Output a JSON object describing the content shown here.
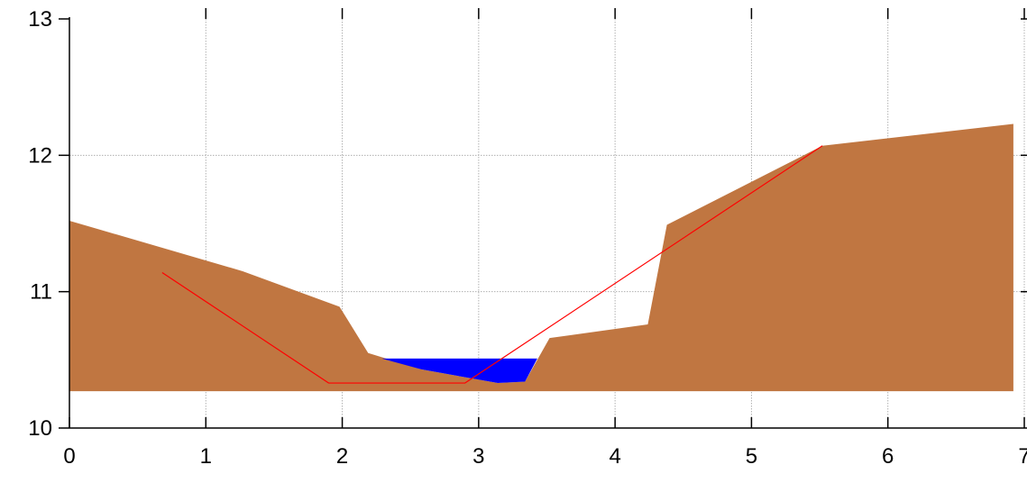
{
  "chart_data": {
    "type": "area",
    "title": "",
    "xlabel": "",
    "ylabel": "",
    "xlim": [
      0,
      7
    ],
    "ylim": [
      10,
      13
    ],
    "grid": true,
    "x_ticks": [
      0,
      1,
      2,
      3,
      4,
      5,
      6,
      7
    ],
    "y_ticks": [
      10,
      11,
      12,
      13
    ],
    "x_tick_labels": [
      "0",
      "1",
      "2",
      "3",
      "4",
      "5",
      "6",
      "7"
    ],
    "y_tick_labels": [
      "10",
      "11",
      "12",
      "13"
    ],
    "colors": {
      "terrain": "#c07641",
      "water": "#0000ff",
      "line": "#ff0000",
      "grid": "#b0b0b0",
      "axis": "#000000"
    },
    "base_level": 10.27,
    "terrain": {
      "x": [
        0,
        1.27,
        1.98,
        2.19,
        2.58,
        3.14,
        3.34,
        3.52,
        4.24,
        4.38,
        5.52,
        6.92
      ],
      "y": [
        11.52,
        11.15,
        10.89,
        10.55,
        10.43,
        10.33,
        10.34,
        10.66,
        10.76,
        11.49,
        12.07,
        12.23
      ]
    },
    "water": {
      "x": [
        2.29,
        3.43,
        3.34,
        3.14,
        2.58,
        2.29
      ],
      "y": [
        10.51,
        10.51,
        10.34,
        10.33,
        10.43,
        10.51
      ]
    },
    "line": {
      "x": [
        0.68,
        1.9,
        2.9,
        5.52
      ],
      "y": [
        11.14,
        10.33,
        10.33,
        12.07
      ]
    }
  }
}
